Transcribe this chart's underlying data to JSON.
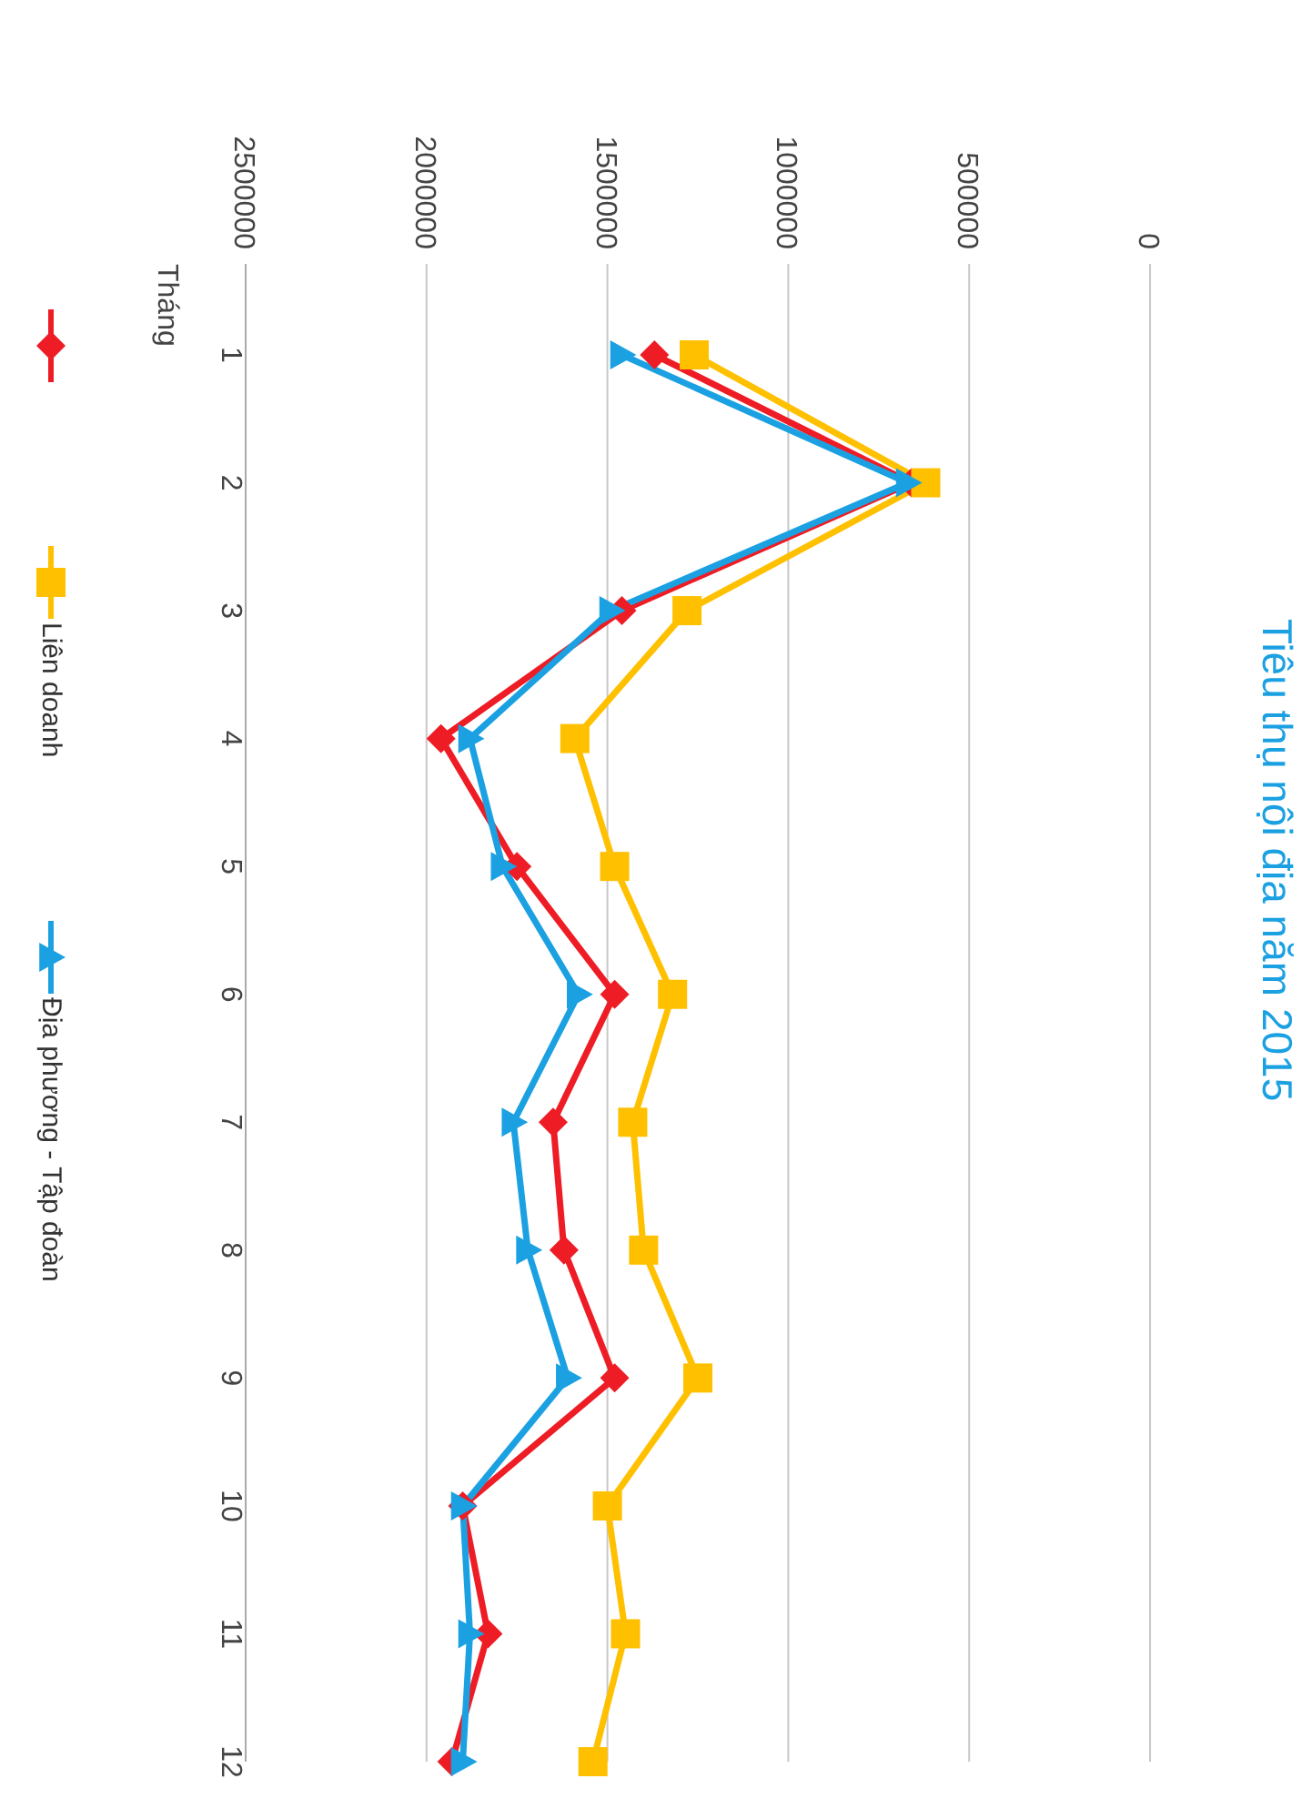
{
  "chart_data": {
    "type": "line",
    "orientation": "horizontal",
    "title": "Tiêu thụ nội địa năm 2015",
    "ylabel": "Tháng",
    "categories": [
      "1",
      "2",
      "3",
      "4",
      "5",
      "6",
      "7",
      "8",
      "9",
      "10",
      "11",
      "12"
    ],
    "series": [
      {
        "color": "#ee1c25",
        "marker": "diamond",
        "values": [
          1370000,
          660000,
          1460000,
          1960000,
          1750000,
          1480000,
          1650000,
          1620000,
          1480000,
          1900000,
          1830000,
          1930000
        ]
      },
      {
        "name": "Liên doanh",
        "color": "#ffc000",
        "marker": "square",
        "values": [
          1260000,
          620000,
          1280000,
          1590000,
          1480000,
          1320000,
          1430000,
          1400000,
          1250000,
          1500000,
          1450000,
          1540000
        ]
      },
      {
        "name": "Địa phương - Tập đoàn",
        "color": "#1ba1e2",
        "marker": "triangle",
        "values": [
          1460000,
          670000,
          1490000,
          1880000,
          1790000,
          1580000,
          1760000,
          1720000,
          1610000,
          1900000,
          1880000,
          1900000
        ]
      }
    ],
    "xlim": [
      2500000,
      0
    ],
    "xticks": [
      0,
      500000,
      1000000,
      1500000,
      2000000,
      2500000
    ],
    "grid": "x",
    "legend": "left"
  }
}
